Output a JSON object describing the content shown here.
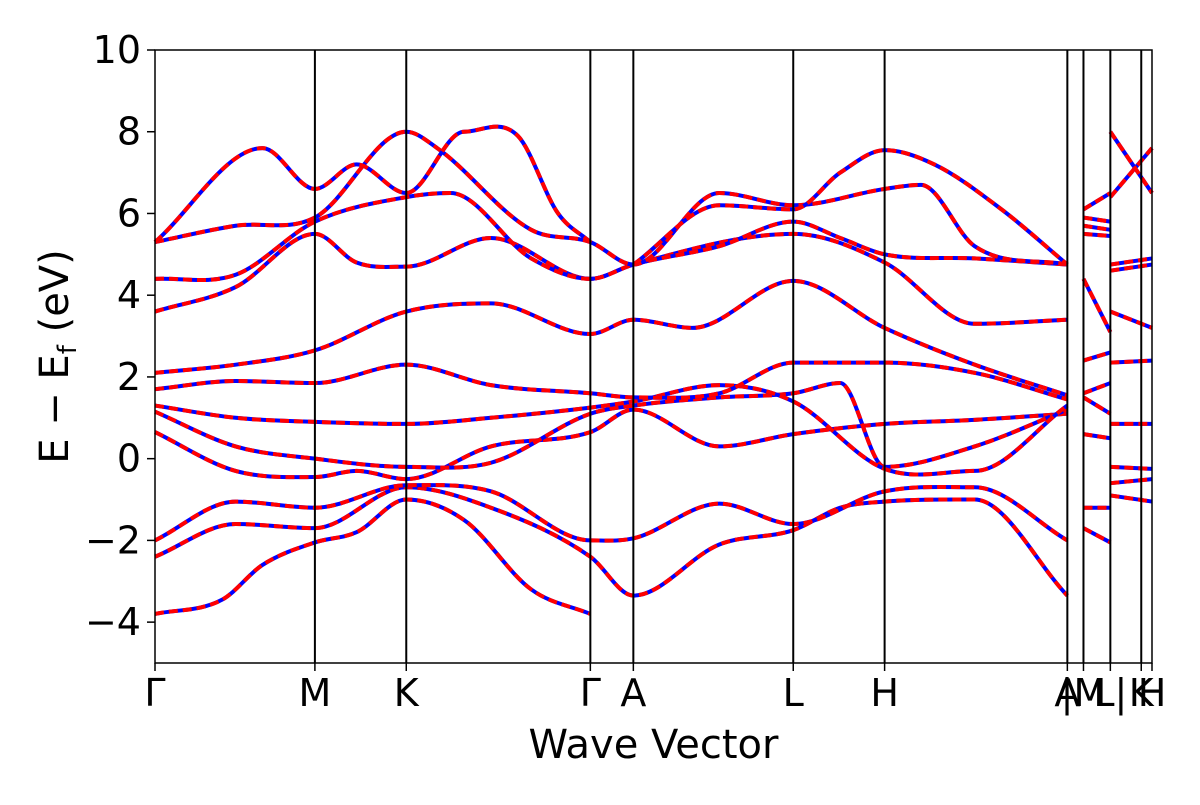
{
  "chart_data": {
    "type": "line",
    "title": "",
    "xlabel": "Wave Vector",
    "ylabel": "E − E",
    "ylabel_subscript": "f",
    "ylabel_unit": " (eV)",
    "ylim": [
      -5,
      10
    ],
    "yticks": [
      {
        "value": -4,
        "label": "−4"
      },
      {
        "value": -2,
        "label": "−2"
      },
      {
        "value": 0,
        "label": "0"
      },
      {
        "value": 2,
        "label": "2"
      },
      {
        "value": 4,
        "label": "4"
      },
      {
        "value": 6,
        "label": "6"
      },
      {
        "value": 8,
        "label": "8"
      },
      {
        "value": 10,
        "label": "10"
      }
    ],
    "xlim": [
      0,
      7.42
    ],
    "kpoints": [
      {
        "label": "Γ",
        "x": 0.0
      },
      {
        "label": "M",
        "x": 1.19
      },
      {
        "label": "K",
        "x": 1.87
      },
      {
        "label": "Γ",
        "x": 3.24
      },
      {
        "label": "A",
        "x": 3.56
      },
      {
        "label": "L",
        "x": 4.75
      },
      {
        "label": "H",
        "x": 5.43
      },
      {
        "label": "A",
        "x": 6.79
      },
      {
        "label": "|M",
        "x": 6.91
      },
      {
        "label": "L|",
        "x": 7.11
      },
      {
        "label": "K",
        "x": 7.34
      },
      {
        "label": "H",
        "x": 7.42
      }
    ],
    "grid": false,
    "legend": "none",
    "colors": {
      "spin_up": "#0000ff",
      "spin_down": "#ff0000"
    },
    "segments": [
      {
        "x0": 0.0,
        "x1": 6.79,
        "bands": [
          [
            [
              0.0,
              -3.8
            ],
            [
              0.5,
              -3.45
            ],
            [
              0.8,
              -2.6
            ],
            [
              1.19,
              -2.05
            ],
            [
              1.5,
              -1.8
            ],
            [
              1.87,
              -1.0
            ],
            [
              2.3,
              -1.5
            ],
            [
              2.8,
              -3.2
            ],
            [
              3.24,
              -3.8
            ]
          ],
          [
            [
              0.0,
              -2.4
            ],
            [
              0.6,
              -1.6
            ],
            [
              1.19,
              -1.7
            ],
            [
              1.87,
              -0.7
            ],
            [
              2.5,
              -1.2
            ],
            [
              3.24,
              -2.4
            ],
            [
              3.56,
              -3.35
            ],
            [
              4.2,
              -2.1
            ],
            [
              4.75,
              -1.75
            ],
            [
              5.1,
              -1.2
            ],
            [
              5.43,
              -1.05
            ],
            [
              6.1,
              -1.0
            ],
            [
              6.79,
              -3.35
            ]
          ],
          [
            [
              0.0,
              -2.0
            ],
            [
              0.6,
              -1.05
            ],
            [
              1.19,
              -1.2
            ],
            [
              1.87,
              -0.65
            ],
            [
              2.5,
              -0.8
            ],
            [
              3.24,
              -2.0
            ],
            [
              3.56,
              -1.95
            ],
            [
              4.2,
              -1.1
            ],
            [
              4.75,
              -1.6
            ],
            [
              5.43,
              -0.8
            ],
            [
              6.1,
              -0.7
            ],
            [
              6.79,
              -2.0
            ]
          ],
          [
            [
              0.0,
              0.65
            ],
            [
              0.6,
              -0.3
            ],
            [
              1.19,
              -0.45
            ],
            [
              1.5,
              -0.3
            ],
            [
              1.87,
              -0.5
            ],
            [
              2.5,
              0.3
            ],
            [
              3.24,
              0.65
            ],
            [
              3.56,
              1.2
            ],
            [
              4.2,
              0.3
            ],
            [
              4.75,
              0.6
            ],
            [
              5.43,
              0.85
            ],
            [
              6.1,
              0.95
            ],
            [
              6.79,
              1.1
            ]
          ],
          [
            [
              0.0,
              1.15
            ],
            [
              0.6,
              0.3
            ],
            [
              1.19,
              0.0
            ],
            [
              1.87,
              -0.2
            ],
            [
              2.5,
              -0.1
            ],
            [
              3.24,
              1.1
            ],
            [
              3.56,
              1.3
            ],
            [
              4.2,
              1.5
            ],
            [
              4.75,
              1.6
            ],
            [
              5.1,
              1.85
            ],
            [
              5.43,
              -0.2
            ],
            [
              6.1,
              0.3
            ],
            [
              6.79,
              1.2
            ]
          ],
          [
            [
              0.0,
              1.3
            ],
            [
              0.6,
              1.0
            ],
            [
              1.19,
              0.9
            ],
            [
              1.87,
              0.85
            ],
            [
              2.5,
              1.0
            ],
            [
              3.24,
              1.25
            ],
            [
              3.56,
              1.4
            ],
            [
              4.2,
              1.8
            ],
            [
              4.75,
              1.4
            ],
            [
              5.43,
              -0.25
            ],
            [
              6.1,
              -0.3
            ],
            [
              6.79,
              1.3
            ]
          ],
          [
            [
              0.0,
              1.7
            ],
            [
              0.6,
              1.9
            ],
            [
              1.19,
              1.85
            ],
            [
              1.87,
              2.3
            ],
            [
              2.5,
              1.8
            ],
            [
              3.24,
              1.6
            ],
            [
              3.56,
              1.5
            ],
            [
              4.2,
              1.6
            ],
            [
              4.75,
              2.35
            ],
            [
              5.43,
              2.35
            ],
            [
              6.1,
              2.1
            ],
            [
              6.79,
              1.45
            ]
          ],
          [
            [
              0.0,
              2.1
            ],
            [
              0.6,
              2.3
            ],
            [
              1.19,
              2.65
            ],
            [
              1.87,
              3.6
            ],
            [
              2.5,
              3.8
            ],
            [
              3.24,
              3.05
            ],
            [
              3.56,
              3.4
            ],
            [
              4.0,
              3.2
            ],
            [
              4.75,
              4.35
            ],
            [
              5.43,
              3.2
            ],
            [
              6.1,
              2.3
            ],
            [
              6.79,
              1.55
            ]
          ],
          [
            [
              0.0,
              3.6
            ],
            [
              0.6,
              4.2
            ],
            [
              1.19,
              5.5
            ],
            [
              1.5,
              4.8
            ],
            [
              1.87,
              4.7
            ],
            [
              2.5,
              5.4
            ],
            [
              3.24,
              4.4
            ],
            [
              3.56,
              4.75
            ],
            [
              4.75,
              5.5
            ],
            [
              5.43,
              4.8
            ],
            [
              6.1,
              3.3
            ],
            [
              6.79,
              3.4
            ]
          ],
          [
            [
              0.0,
              4.4
            ],
            [
              0.6,
              4.5
            ],
            [
              1.19,
              5.8
            ],
            [
              1.87,
              6.4
            ],
            [
              2.2,
              6.5
            ],
            [
              2.8,
              4.9
            ],
            [
              3.24,
              4.4
            ],
            [
              3.56,
              4.75
            ],
            [
              4.2,
              5.2
            ],
            [
              4.75,
              5.8
            ],
            [
              5.1,
              5.4
            ],
            [
              5.43,
              5.0
            ],
            [
              6.1,
              4.9
            ],
            [
              6.79,
              4.75
            ]
          ],
          [
            [
              0.0,
              5.3
            ],
            [
              0.6,
              5.7
            ],
            [
              1.19,
              5.9
            ],
            [
              1.87,
              8.0
            ],
            [
              2.1,
              7.6
            ],
            [
              2.8,
              5.6
            ],
            [
              3.24,
              5.3
            ],
            [
              3.56,
              4.75
            ],
            [
              4.2,
              6.5
            ],
            [
              4.75,
              6.2
            ],
            [
              5.43,
              6.6
            ],
            [
              5.7,
              6.7
            ],
            [
              6.1,
              5.2
            ],
            [
              6.79,
              4.75
            ]
          ],
          [
            [
              0.0,
              5.3
            ],
            [
              0.8,
              7.6
            ],
            [
              1.19,
              6.6
            ],
            [
              1.5,
              7.2
            ],
            [
              1.87,
              6.5
            ],
            [
              2.3,
              8.0
            ],
            [
              2.7,
              7.9
            ],
            [
              3.0,
              6.0
            ],
            [
              3.24,
              5.3
            ]
          ],
          [
            [
              3.56,
              4.75
            ],
            [
              4.2,
              6.2
            ],
            [
              4.75,
              6.1
            ],
            [
              5.1,
              7.0
            ],
            [
              5.43,
              7.55
            ],
            [
              5.8,
              7.2
            ],
            [
              6.3,
              6.1
            ],
            [
              6.79,
              4.75
            ]
          ]
        ]
      },
      {
        "x0": 6.91,
        "x1": 7.11,
        "bands": [
          [
            [
              6.91,
              -1.7
            ],
            [
              7.11,
              -2.05
            ]
          ],
          [
            [
              6.91,
              -1.2
            ],
            [
              7.11,
              -1.2
            ]
          ],
          [
            [
              6.91,
              0.6
            ],
            [
              7.11,
              0.5
            ]
          ],
          [
            [
              6.91,
              1.5
            ],
            [
              7.11,
              1.1
            ]
          ],
          [
            [
              6.91,
              1.6
            ],
            [
              7.11,
              1.85
            ]
          ],
          [
            [
              6.91,
              2.4
            ],
            [
              7.11,
              2.6
            ]
          ],
          [
            [
              6.91,
              4.4
            ],
            [
              7.11,
              3.1
            ]
          ],
          [
            [
              6.91,
              5.5
            ],
            [
              7.11,
              5.45
            ]
          ],
          [
            [
              6.91,
              5.7
            ],
            [
              7.11,
              5.6
            ]
          ],
          [
            [
              6.91,
              5.9
            ],
            [
              7.11,
              5.8
            ]
          ],
          [
            [
              6.91,
              6.1
            ],
            [
              7.11,
              6.5
            ]
          ]
        ]
      },
      {
        "x0": 7.11,
        "x1": 7.42,
        "bands": [
          [
            [
              7.11,
              -0.9
            ],
            [
              7.42,
              -1.05
            ]
          ],
          [
            [
              7.11,
              -0.6
            ],
            [
              7.42,
              -0.5
            ]
          ],
          [
            [
              7.11,
              -0.2
            ],
            [
              7.42,
              -0.25
            ]
          ],
          [
            [
              7.11,
              0.85
            ],
            [
              7.42,
              0.85
            ]
          ],
          [
            [
              7.11,
              2.35
            ],
            [
              7.42,
              2.4
            ]
          ],
          [
            [
              7.11,
              3.6
            ],
            [
              7.42,
              3.2
            ]
          ],
          [
            [
              7.11,
              4.6
            ],
            [
              7.42,
              4.75
            ]
          ],
          [
            [
              7.11,
              4.75
            ],
            [
              7.42,
              4.9
            ]
          ],
          [
            [
              7.11,
              6.4
            ],
            [
              7.42,
              7.6
            ]
          ],
          [
            [
              7.11,
              8.0
            ],
            [
              7.42,
              6.5
            ]
          ]
        ]
      }
    ]
  }
}
